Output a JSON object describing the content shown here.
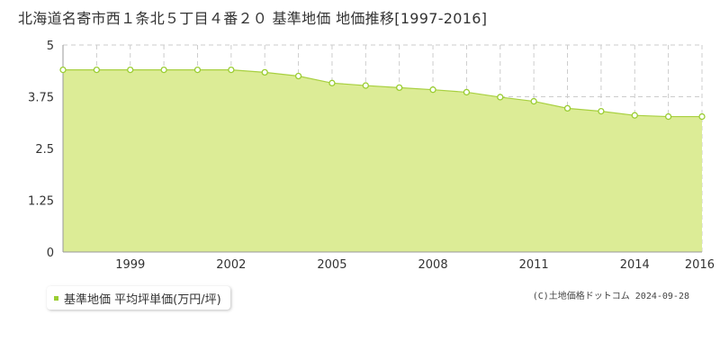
{
  "title": "北海道名寄市西１条北５丁目４番２０ 基準地価 地価推移[1997-2016]",
  "legend_label": "基準地価 平均坪単価(万円/坪)",
  "copyright": "(C)土地価格ドットコム 2024-09-28",
  "colors": {
    "fill": "#dcec96",
    "line": "#a8d040",
    "marker": "#9acd32",
    "grid": "#cccccc"
  },
  "chart_data": {
    "type": "area",
    "x": [
      1997,
      1998,
      1999,
      2000,
      2001,
      2002,
      2003,
      2004,
      2005,
      2006,
      2007,
      2008,
      2009,
      2010,
      2011,
      2012,
      2013,
      2014,
      2015,
      2016
    ],
    "series": [
      {
        "values": [
          4.4,
          4.4,
          4.4,
          4.4,
          4.4,
          4.4,
          4.34,
          4.25,
          4.08,
          4.02,
          3.97,
          3.92,
          3.86,
          3.74,
          3.64,
          3.47,
          3.4,
          3.3,
          3.27,
          3.27
        ]
      }
    ],
    "ylim": [
      0,
      5
    ],
    "yticks": [
      "0",
      "1.25",
      "2.5",
      "3.75",
      "5"
    ],
    "xticks": [
      "1999",
      "2002",
      "2005",
      "2008",
      "2011",
      "2014",
      "2016"
    ],
    "grid": true
  }
}
